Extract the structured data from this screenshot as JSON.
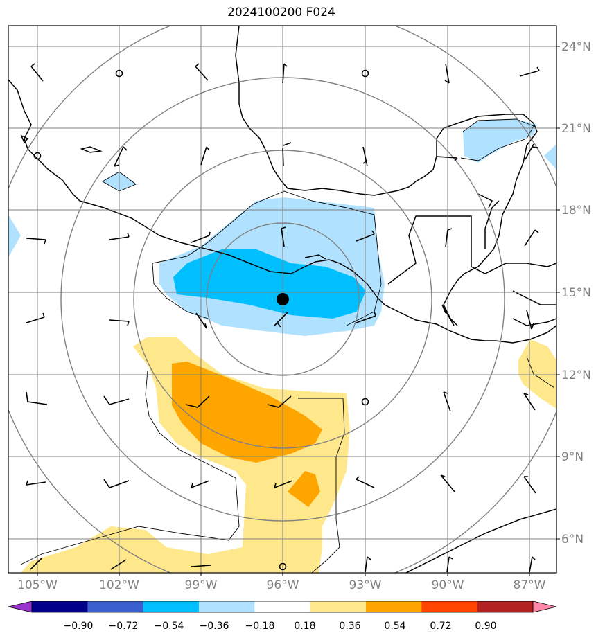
{
  "title": "2024100200 F024",
  "lat_labels": [
    "24°N",
    "21°N",
    "18°N",
    "15°N",
    "12°N",
    "9°N",
    "6°N"
  ],
  "lon_labels": [
    "105°W",
    "102°W",
    "99°W",
    "96°W",
    "93°W",
    "90°W",
    "87°W"
  ],
  "colorbar": {
    "ticks": [
      "−0.90",
      "−0.72",
      "−0.54",
      "−0.36",
      "−0.18",
      "0.18",
      "0.36",
      "0.54",
      "0.72",
      "0.90"
    ],
    "colors": [
      "#9933cc",
      "#00008b",
      "#3a5fcd",
      "#00bfff",
      "#b0e2ff",
      "#ffffff",
      "#ffe88c",
      "#ffa500",
      "#ff4500",
      "#b22222",
      "#ff88aa"
    ]
  },
  "center_marker": {
    "lon": -96,
    "lat": 14.75
  }
}
